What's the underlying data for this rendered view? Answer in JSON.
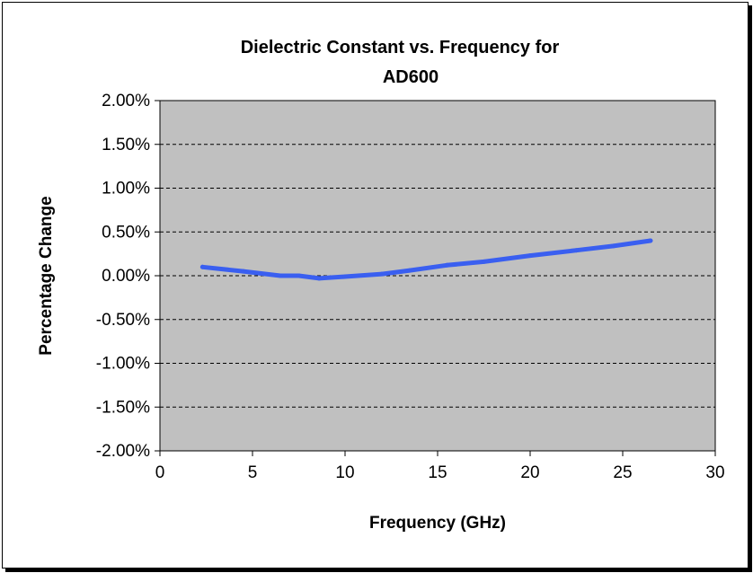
{
  "chart_data": {
    "type": "line",
    "title_line1": "Dielectric Constant vs. Frequency  for",
    "title_line2": "AD600",
    "xlabel": "Frequency (GHz)",
    "ylabel": "Percentage Change",
    "xlim": [
      0,
      30
    ],
    "ylim": [
      -2.0,
      2.0
    ],
    "x_ticks": [
      0,
      5,
      10,
      15,
      20,
      25,
      30
    ],
    "y_ticks": [
      2.0,
      1.5,
      1.0,
      0.5,
      0.0,
      -0.5,
      -1.0,
      -1.5,
      -2.0
    ],
    "y_tick_labels": [
      "2.00%",
      "1.50%",
      "1.00%",
      "0.50%",
      "0.00%",
      "-0.50%",
      "-1.00%",
      "-1.50%",
      "-2.00%"
    ],
    "grid": "horizontal dashed",
    "plot_background": "#c0c0c0",
    "series": [
      {
        "color": "#3a5ff0",
        "x": [
          2.3,
          4.5,
          6.5,
          7.5,
          8.6,
          10.0,
          12.0,
          13.5,
          15.5,
          17.5,
          20.0,
          22.5,
          24.5,
          26.5
        ],
        "y": [
          0.1,
          0.05,
          0.0,
          0.0,
          -0.03,
          -0.01,
          0.02,
          0.06,
          0.12,
          0.16,
          0.23,
          0.29,
          0.34,
          0.4
        ]
      }
    ]
  }
}
